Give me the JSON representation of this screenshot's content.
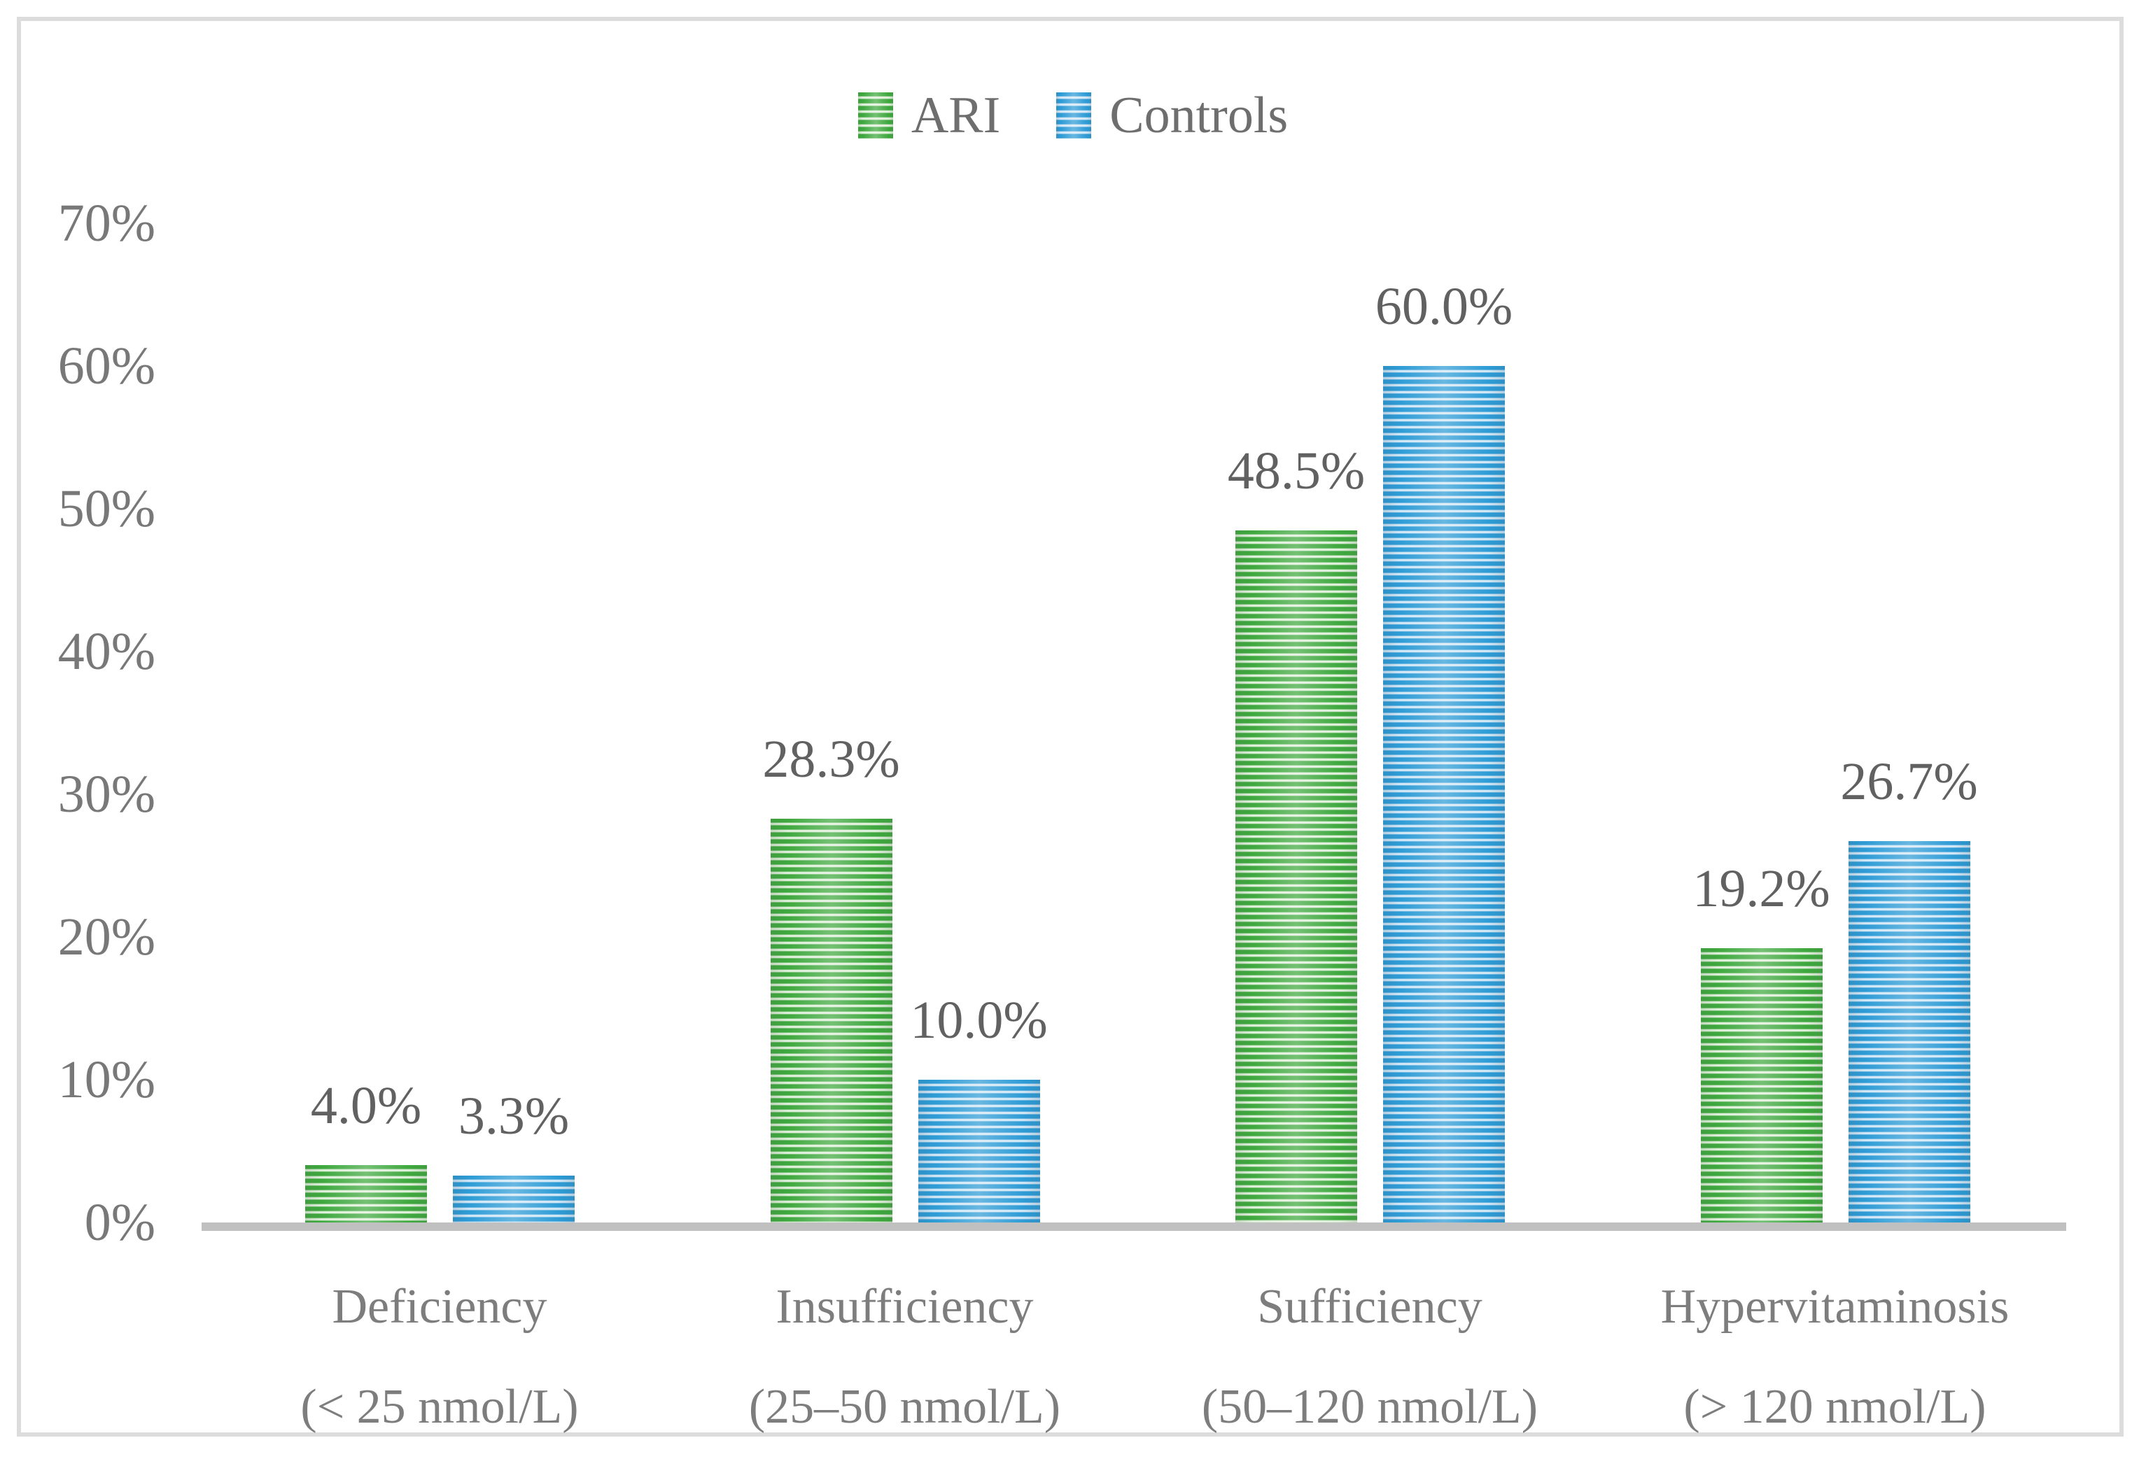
{
  "chart_data": {
    "type": "bar",
    "title": "",
    "xlabel": "",
    "ylabel": "",
    "ylim": [
      0,
      70
    ],
    "ytick_labels": [
      "0%",
      "10%",
      "20%",
      "30%",
      "40%",
      "50%",
      "60%",
      "70%"
    ],
    "ytick_values": [
      0,
      10,
      20,
      30,
      40,
      50,
      60,
      70
    ],
    "grid": false,
    "legend_position": "top-center",
    "categories": [
      {
        "line1": "Deficiency",
        "line2": "(< 25 nmol/L)"
      },
      {
        "line1": "Insufficiency",
        "line2": "(25–50 nmol/L)"
      },
      {
        "line1": "Sufficiency",
        "line2": "(50–120 nmol/L)"
      },
      {
        "line1": "Hypervitaminosis",
        "line2": "(> 120 nmol/L)"
      }
    ],
    "series": [
      {
        "name": "ARI",
        "values": [
          4.0,
          28.3,
          48.5,
          19.2
        ],
        "data_labels": [
          "4.0%",
          "28.3%",
          "48.5%",
          "19.2%"
        ]
      },
      {
        "name": "Controls",
        "values": [
          3.3,
          10.0,
          60.0,
          26.7
        ],
        "data_labels": [
          "3.3%",
          "10.0%",
          "60.0%",
          "26.7%"
        ]
      }
    ]
  },
  "colors": {
    "ari": "#3EA83E",
    "ari_light": "#E4F2DF",
    "controls": "#2E9CD6",
    "controls_light": "#D8EAF7",
    "axis_line": "#C0C0C0",
    "frame_border": "#DCDCDC",
    "tick_text": "#787878",
    "label_text": "#616161",
    "category_text": "#7D7D7D",
    "legend_text": "#6E6E6E"
  }
}
